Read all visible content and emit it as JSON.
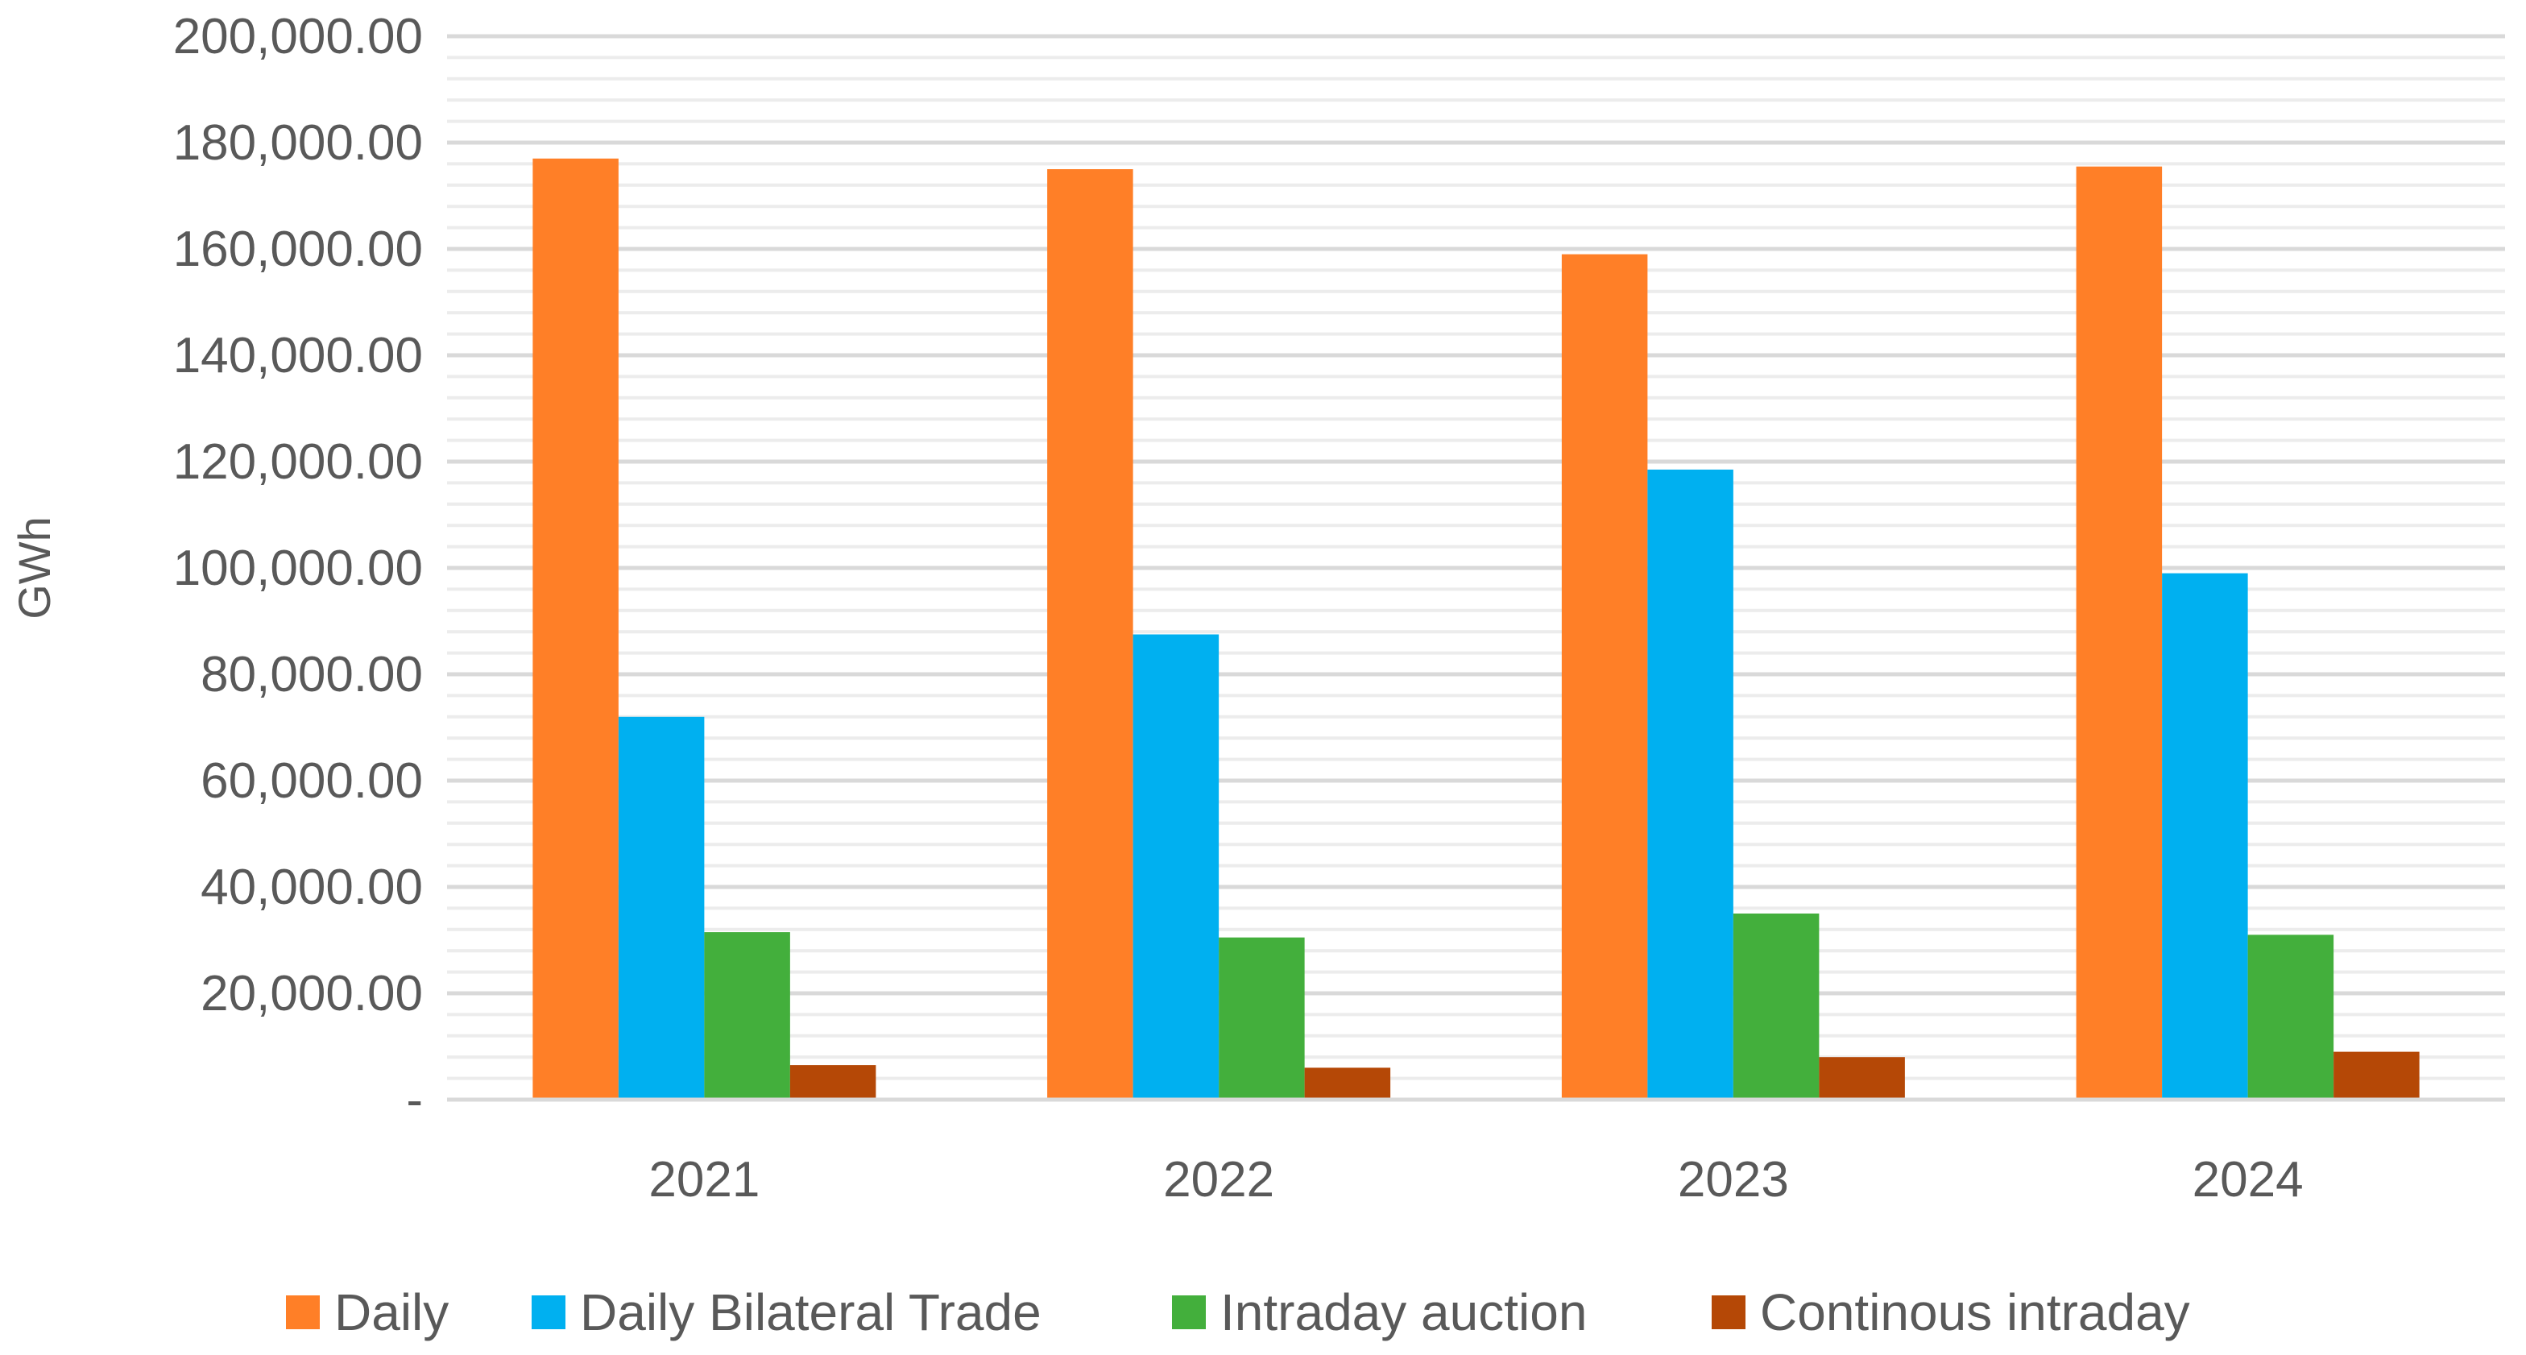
{
  "chart_data": {
    "type": "bar",
    "title": "",
    "xlabel": "",
    "ylabel": "GWh",
    "ylim": [
      0,
      200000
    ],
    "y_ticks": [
      0,
      20000,
      40000,
      60000,
      80000,
      100000,
      120000,
      140000,
      160000,
      180000,
      200000
    ],
    "y_tick_labels": [
      "-",
      "20,000.00",
      "40,000.00",
      "60,000.00",
      "80,000.00",
      "100,000.00",
      "120,000.00",
      "140,000.00",
      "160,000.00",
      "180,000.00",
      "200,000.00"
    ],
    "categories": [
      "2021",
      "2022",
      "2023",
      "2024"
    ],
    "series": [
      {
        "name": "Daily",
        "color": "#FF7F27",
        "values": [
          177000,
          175000,
          159000,
          175500
        ]
      },
      {
        "name": "Daily Bilateral Trade",
        "color": "#00B0F0",
        "values": [
          72000,
          87500,
          118500,
          99000
        ]
      },
      {
        "name": "Intraday auction",
        "color": "#43AF3C",
        "values": [
          31500,
          30500,
          35000,
          31000
        ]
      },
      {
        "name": "Continous intraday",
        "color": "#B54806",
        "values": [
          6500,
          6000,
          8000,
          9000
        ]
      }
    ],
    "grid": true,
    "legend_position": "bottom"
  }
}
